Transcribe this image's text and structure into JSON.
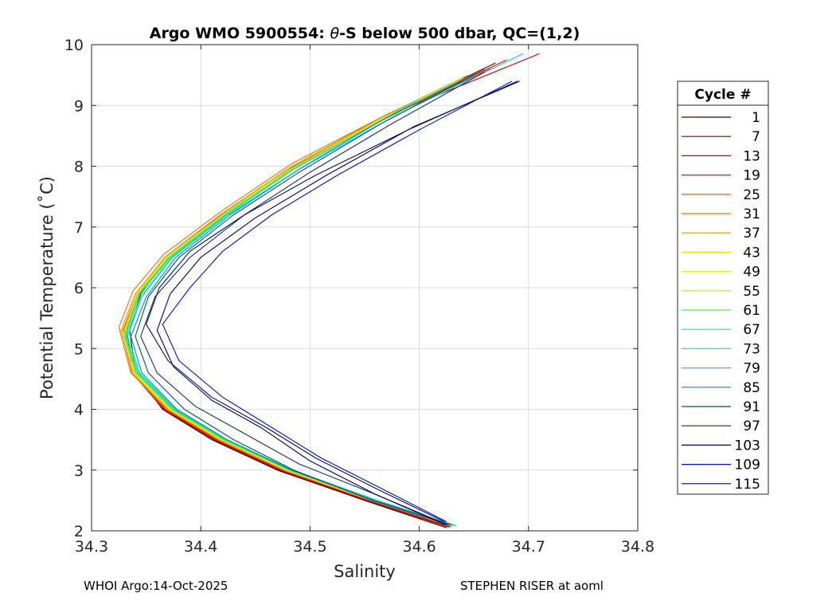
{
  "chart_data": {
    "type": "line",
    "title_main": "Argo WMO 5900554: ",
    "title_theta": "θ",
    "title_rest": "-S below 500 dbar,  QC=(1,2)",
    "xlabel": "Salinity",
    "ylabel": "Potential Temperature (˚C)",
    "xlim": [
      34.3,
      34.8
    ],
    "ylim": [
      2,
      10
    ],
    "xticks": [
      "34.3",
      "34.4",
      "34.5",
      "34.6",
      "34.7",
      "34.8"
    ],
    "yticks": [
      "2",
      "3",
      "4",
      "5",
      "6",
      "7",
      "8",
      "9",
      "10"
    ],
    "grid": true,
    "legend": {
      "title": "Cycle #",
      "placement": "right-outside",
      "entries": [
        {
          "label": "1",
          "color": "#3a0000"
        },
        {
          "label": "7",
          "color": "#7a0000"
        },
        {
          "label": "13",
          "color": "#c40000"
        },
        {
          "label": "19",
          "color": "#f01000"
        },
        {
          "label": "25",
          "color": "#f04020"
        },
        {
          "label": "31",
          "color": "#f07000"
        },
        {
          "label": "37",
          "color": "#d4a000"
        },
        {
          "label": "43",
          "color": "#f0e000"
        },
        {
          "label": "49",
          "color": "#d8f020"
        },
        {
          "label": "55",
          "color": "#a0f040"
        },
        {
          "label": "61",
          "color": "#50f050"
        },
        {
          "label": "67",
          "color": "#20e090"
        },
        {
          "label": "73",
          "color": "#20e0c8"
        },
        {
          "label": "79",
          "color": "#10c8f0"
        },
        {
          "label": "85",
          "color": "#0090a0"
        },
        {
          "label": "91",
          "color": "#005080"
        },
        {
          "label": "97",
          "color": "#103070"
        },
        {
          "label": "103",
          "color": "#000060"
        },
        {
          "label": "109",
          "color": "#0010d0"
        },
        {
          "label": "115",
          "color": "#001060"
        }
      ]
    },
    "series": [
      {
        "name": "1",
        "color": "#3a0000",
        "s": [
          34.625,
          34.55,
          34.47,
          34.41,
          34.365,
          34.34,
          34.335,
          34.345,
          34.37,
          34.42,
          34.48,
          34.56,
          34.66
        ],
        "t": [
          2.05,
          2.5,
          3.0,
          3.5,
          4.0,
          4.6,
          5.3,
          5.9,
          6.5,
          7.2,
          7.9,
          8.7,
          9.6
        ]
      },
      {
        "name": "7",
        "color": "#7a0000",
        "s": [
          34.627,
          34.552,
          34.472,
          34.412,
          34.366,
          34.338,
          34.332,
          34.343,
          34.368,
          34.418,
          34.48,
          34.565,
          34.67
        ],
        "t": [
          2.06,
          2.5,
          3.0,
          3.5,
          4.0,
          4.6,
          5.3,
          5.9,
          6.5,
          7.2,
          7.95,
          8.8,
          9.7
        ]
      },
      {
        "name": "13",
        "color": "#c40000",
        "s": [
          34.628,
          34.553,
          34.473,
          34.413,
          34.366,
          34.337,
          34.33,
          34.342,
          34.367,
          34.418,
          34.485,
          34.58,
          34.71
        ],
        "t": [
          2.07,
          2.5,
          3.0,
          3.5,
          4.0,
          4.6,
          5.3,
          5.9,
          6.5,
          7.2,
          8.0,
          8.9,
          9.85
        ]
      },
      {
        "name": "19",
        "color": "#f01000",
        "s": [
          34.629,
          34.554,
          34.474,
          34.414,
          34.367,
          34.337,
          34.329,
          34.342,
          34.367,
          34.418,
          34.484,
          34.575,
          34.68
        ],
        "t": [
          2.07,
          2.5,
          3.0,
          3.5,
          4.0,
          4.6,
          5.3,
          5.9,
          6.5,
          7.2,
          8.0,
          8.85,
          9.75
        ]
      },
      {
        "name": "25",
        "color": "#f04020",
        "s": [
          34.629,
          34.555,
          34.475,
          34.415,
          34.368,
          34.337,
          34.329,
          34.342,
          34.368,
          34.419,
          34.484,
          34.57,
          34.665
        ],
        "t": [
          2.07,
          2.5,
          3.0,
          3.5,
          4.0,
          4.6,
          5.3,
          5.9,
          6.5,
          7.2,
          8.0,
          8.8,
          9.6
        ]
      },
      {
        "name": "31",
        "color": "#f07000",
        "s": [
          34.63,
          34.556,
          34.476,
          34.416,
          34.369,
          34.336,
          34.325,
          34.338,
          34.366,
          34.418,
          34.484,
          34.57,
          34.66
        ],
        "t": [
          2.08,
          2.5,
          3.0,
          3.5,
          4.0,
          4.6,
          5.35,
          5.95,
          6.55,
          7.25,
          8.05,
          8.85,
          9.6
        ]
      },
      {
        "name": "37",
        "color": "#d4a000",
        "s": [
          34.63,
          34.556,
          34.477,
          34.417,
          34.37,
          34.337,
          34.327,
          34.34,
          34.367,
          34.418,
          34.483,
          34.565,
          34.645
        ],
        "t": [
          2.08,
          2.5,
          3.0,
          3.5,
          4.0,
          4.6,
          5.3,
          5.9,
          6.5,
          7.2,
          8.0,
          8.8,
          9.5
        ]
      },
      {
        "name": "43",
        "color": "#f0e000",
        "s": [
          34.631,
          34.557,
          34.478,
          34.418,
          34.371,
          34.338,
          34.328,
          34.341,
          34.368,
          34.42,
          34.484,
          34.562,
          34.64
        ],
        "t": [
          2.08,
          2.5,
          3.0,
          3.5,
          4.0,
          4.6,
          5.3,
          5.9,
          6.5,
          7.2,
          8.0,
          8.75,
          9.45
        ]
      },
      {
        "name": "49",
        "color": "#d8f020",
        "s": [
          34.631,
          34.558,
          34.479,
          34.419,
          34.372,
          34.339,
          34.329,
          34.342,
          34.369,
          34.42,
          34.482,
          34.558,
          34.63
        ],
        "t": [
          2.08,
          2.5,
          3.0,
          3.5,
          4.0,
          4.6,
          5.25,
          5.9,
          6.5,
          7.2,
          7.95,
          8.7,
          9.35
        ]
      },
      {
        "name": "55",
        "color": "#a0f040",
        "s": [
          34.632,
          34.559,
          34.48,
          34.42,
          34.373,
          34.34,
          34.33,
          34.343,
          34.37,
          34.421,
          34.483,
          34.56,
          34.635
        ],
        "t": [
          2.08,
          2.5,
          3.0,
          3.5,
          4.0,
          4.6,
          5.25,
          5.9,
          6.5,
          7.2,
          7.95,
          8.7,
          9.4
        ]
      },
      {
        "name": "61",
        "color": "#50f050",
        "s": [
          34.632,
          34.56,
          34.481,
          34.421,
          34.374,
          34.341,
          34.33,
          34.343,
          34.371,
          34.422,
          34.484,
          34.56,
          34.63
        ],
        "t": [
          2.09,
          2.5,
          3.0,
          3.5,
          4.0,
          4.6,
          5.2,
          5.9,
          6.5,
          7.2,
          7.95,
          8.7,
          9.35
        ]
      },
      {
        "name": "67",
        "color": "#20e090",
        "s": [
          34.633,
          34.56,
          34.482,
          34.422,
          34.375,
          34.342,
          34.331,
          34.344,
          34.372,
          34.423,
          34.485,
          34.56,
          34.625
        ],
        "t": [
          2.09,
          2.5,
          3.0,
          3.5,
          4.0,
          4.6,
          5.2,
          5.9,
          6.5,
          7.2,
          7.95,
          8.7,
          9.3
        ]
      },
      {
        "name": "73",
        "color": "#20e0c8",
        "s": [
          34.633,
          34.561,
          34.483,
          34.423,
          34.376,
          34.343,
          34.332,
          34.345,
          34.373,
          34.424,
          34.485,
          34.555,
          34.6
        ],
        "t": [
          2.09,
          2.5,
          3.0,
          3.5,
          4.0,
          4.6,
          5.2,
          5.85,
          6.5,
          7.2,
          7.95,
          8.65,
          9.1
        ]
      },
      {
        "name": "79",
        "color": "#10c8f0",
        "s": [
          34.634,
          34.562,
          34.484,
          34.424,
          34.377,
          34.344,
          34.333,
          34.346,
          34.374,
          34.425,
          34.49,
          34.58,
          34.695
        ],
        "t": [
          2.08,
          2.5,
          3.0,
          3.5,
          4.0,
          4.6,
          5.2,
          5.85,
          6.5,
          7.2,
          7.95,
          8.85,
          9.85
        ]
      },
      {
        "name": "85",
        "color": "#0090a0",
        "s": [
          34.63,
          34.559,
          34.483,
          34.424,
          34.378,
          34.346,
          34.336,
          34.35,
          34.377,
          34.427,
          34.49,
          34.57,
          34.66
        ],
        "t": [
          2.1,
          2.5,
          3.0,
          3.5,
          4.0,
          4.6,
          5.2,
          5.85,
          6.5,
          7.2,
          7.95,
          8.8,
          9.6
        ]
      },
      {
        "name": "91",
        "color": "#005080",
        "s": [
          34.628,
          34.557,
          34.485,
          34.43,
          34.385,
          34.352,
          34.34,
          34.352,
          34.38,
          34.43,
          34.49,
          34.565,
          34.65
        ],
        "t": [
          2.1,
          2.5,
          3.0,
          3.5,
          4.0,
          4.6,
          5.2,
          5.85,
          6.5,
          7.2,
          7.9,
          8.7,
          9.5
        ]
      },
      {
        "name": "97",
        "color": "#103070",
        "s": [
          34.626,
          34.56,
          34.49,
          34.44,
          34.395,
          34.36,
          34.345,
          34.358,
          34.39,
          34.44,
          34.5,
          34.575,
          34.66
        ],
        "t": [
          2.1,
          2.6,
          3.1,
          3.6,
          4.05,
          4.6,
          5.2,
          5.85,
          6.5,
          7.2,
          7.9,
          8.7,
          9.55
        ]
      },
      {
        "name": "103",
        "color": "#000060",
        "s": [
          34.624,
          34.56,
          34.5,
          34.455,
          34.41,
          34.375,
          34.36,
          34.372,
          34.4,
          34.45,
          34.515,
          34.595,
          34.692
        ],
        "t": [
          2.1,
          2.6,
          3.15,
          3.7,
          4.15,
          4.7,
          5.3,
          5.9,
          6.5,
          7.15,
          7.85,
          8.65,
          9.4
        ]
      },
      {
        "name": "109",
        "color": "#0010d0",
        "s": [
          34.625,
          34.565,
          34.51,
          34.465,
          34.42,
          34.38,
          34.365,
          34.39,
          34.42,
          34.465,
          34.525,
          34.6,
          34.685
        ],
        "t": [
          2.15,
          2.7,
          3.2,
          3.7,
          4.2,
          4.8,
          5.4,
          6.0,
          6.6,
          7.2,
          7.85,
          8.6,
          9.4
        ]
      },
      {
        "name": "115",
        "color": "#001060",
        "s": [
          34.623,
          34.56,
          34.505,
          34.46,
          34.41,
          34.37,
          34.35,
          34.362,
          34.39,
          34.44,
          34.505,
          34.59,
          34.69
        ],
        "t": [
          2.15,
          2.7,
          3.2,
          3.7,
          4.2,
          4.8,
          5.4,
          6.0,
          6.6,
          7.2,
          7.85,
          8.6,
          9.4
        ]
      }
    ]
  },
  "footer": {
    "left": "WHOI Argo:14-Oct-2025",
    "right": "STEPHEN RISER at aoml"
  }
}
